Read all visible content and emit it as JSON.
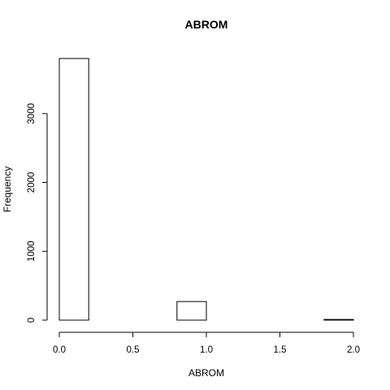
{
  "chart_data": {
    "type": "bar",
    "subtype": "histogram",
    "title": "ABROM",
    "xlabel": "ABROM",
    "ylabel": "Frequency",
    "bins": [
      {
        "from": 0.0,
        "to": 0.2,
        "count": 3800
      },
      {
        "from": 0.2,
        "to": 0.4,
        "count": 0
      },
      {
        "from": 0.4,
        "to": 0.6,
        "count": 0
      },
      {
        "from": 0.6,
        "to": 0.8,
        "count": 0
      },
      {
        "from": 0.8,
        "to": 1.0,
        "count": 270
      },
      {
        "from": 1.0,
        "to": 1.2,
        "count": 0
      },
      {
        "from": 1.2,
        "to": 1.4,
        "count": 0
      },
      {
        "from": 1.4,
        "to": 1.6,
        "count": 0
      },
      {
        "from": 1.6,
        "to": 1.8,
        "count": 0
      },
      {
        "from": 1.8,
        "to": 2.0,
        "count": 10
      }
    ],
    "xlim": [
      0.0,
      2.0
    ],
    "ylim": [
      0,
      3800
    ],
    "x_ticks": [
      "0.0",
      "0.5",
      "1.0",
      "1.5",
      "2.0"
    ],
    "y_ticks": [
      "0",
      "1000",
      "2000",
      "3000"
    ],
    "grid": false
  }
}
